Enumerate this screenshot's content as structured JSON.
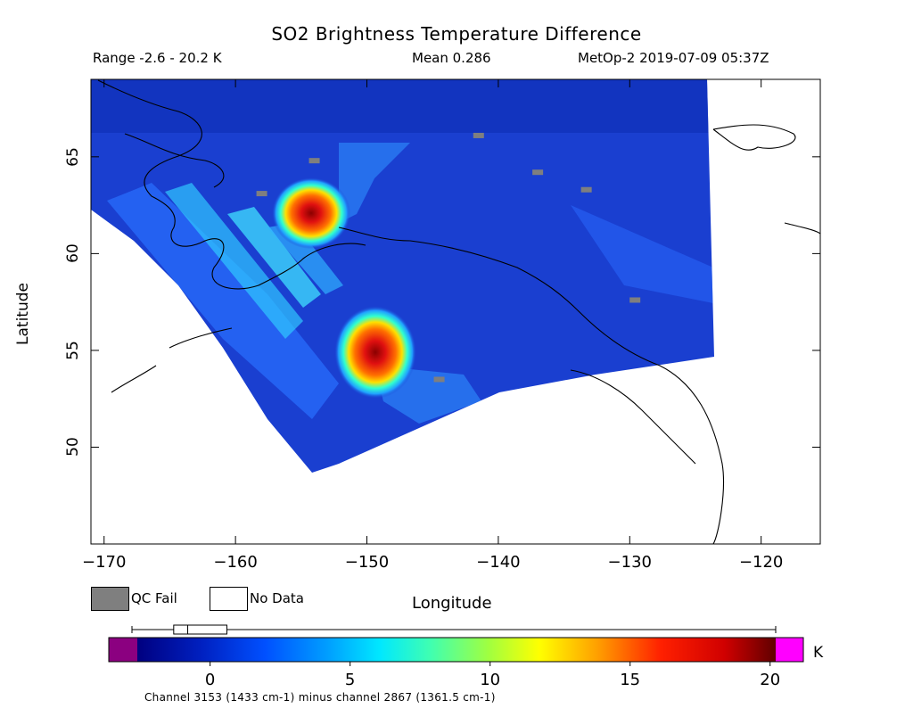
{
  "header": {
    "title": "SO2 Brightness Temperature Difference",
    "range": "Range -2.6 - 20.2 K",
    "mean": "Mean 0.286",
    "satellite_time": "MetOp-2 2019-07-09 05:37Z"
  },
  "legend": {
    "qc_fail": "QC Fail",
    "no_data": "No Data"
  },
  "colorbar": {
    "ticks": [
      "0",
      "5",
      "10",
      "15",
      "20"
    ],
    "tick_values": [
      0,
      5,
      10,
      15,
      20
    ],
    "min": -2.6,
    "max": 20.2,
    "unit": "K",
    "caption": "Channel 3153 (1433 cm-1) minus channel 2867 (1361.5 cm-1)",
    "boxplot": {
      "min": -2.6,
      "q1": -1.3,
      "median": -0.8,
      "q3": 0.6,
      "max": 20.2
    }
  },
  "colors": {
    "qc_fail": "#7f7f7f",
    "no_data": "#ffffff",
    "under": "#8b0080",
    "over": "#ff00ff",
    "background_field": "#1a3fd0"
  },
  "chart_data": {
    "type": "heatmap",
    "title": "SO2 Brightness Temperature Difference",
    "xlabel": "Longitude",
    "ylabel": "Latitude",
    "xlim": [
      -171,
      -115.5
    ],
    "ylim": [
      45,
      69
    ],
    "x_ticks": [
      "-170",
      "-160",
      "-150",
      "-140",
      "-130",
      "-120"
    ],
    "x_tick_values": [
      -170,
      -160,
      -150,
      -140,
      -130,
      -120
    ],
    "y_ticks": [
      "50",
      "55",
      "60",
      "65"
    ],
    "y_tick_values": [
      50,
      55,
      60,
      65
    ],
    "grid": false,
    "value_unit": "K",
    "features": [
      {
        "name": "plume",
        "lon": -153.7,
        "lat": 61.9,
        "peak": 19
      },
      {
        "name": "plume",
        "lon": -149.3,
        "lat": 55.3,
        "peak": 19.5
      }
    ],
    "qc_fail_pixels": [
      {
        "lon": -154,
        "lat": 64.8
      },
      {
        "lon": -158,
        "lat": 63.1
      },
      {
        "lon": -141.5,
        "lat": 66.1
      },
      {
        "lon": -137,
        "lat": 64.2
      },
      {
        "lon": -133.3,
        "lat": 63.3
      },
      {
        "lon": -129.6,
        "lat": 57.6
      },
      {
        "lon": -144.5,
        "lat": 53.5
      }
    ]
  }
}
